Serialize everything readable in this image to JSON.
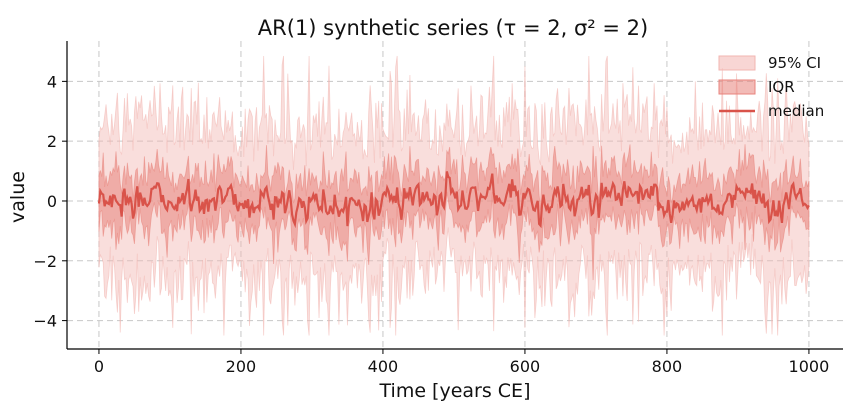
{
  "chart_data": {
    "type": "area",
    "title": "AR(1) synthetic series (τ = 2, σ² = 2)",
    "xlabel": "Time [years CE]",
    "ylabel": "value",
    "xlim": [
      -45,
      1048
    ],
    "ylim": [
      -4.95,
      5.35
    ],
    "xticks": [
      0,
      200,
      400,
      600,
      800,
      1000
    ],
    "yticks": [
      -4,
      -2,
      0,
      2,
      4
    ],
    "x_start": 0,
    "x_end": 1000,
    "grid": true,
    "legend_position": "top-right",
    "series": [
      {
        "name": "95% CI",
        "kind": "band",
        "color": "#f2b5b1",
        "lower_approx": -2.8,
        "upper_approx": 2.8,
        "extreme_min": -4.5,
        "extreme_max": 4.85
      },
      {
        "name": "IQR",
        "kind": "band",
        "color": "#e8837c",
        "lower_approx": -0.95,
        "upper_approx": 0.95
      },
      {
        "name": "median",
        "kind": "line",
        "color": "#d9534a",
        "mean": 0.0,
        "amplitude_approx": 0.6
      }
    ],
    "colors": {
      "ci": "#f2b5b1",
      "iqr": "#e8837c",
      "median": "#d9534a"
    }
  }
}
